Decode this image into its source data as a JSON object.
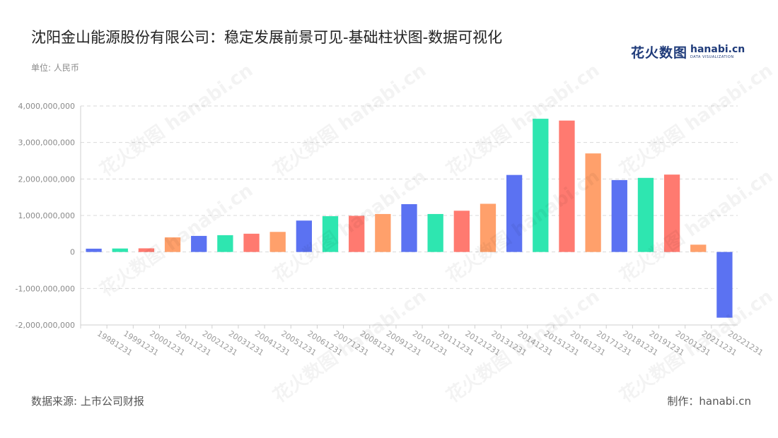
{
  "header": {
    "title": "沈阳金山能源股份有限公司：稳定发展前景可见-基础柱状图-数据可视化",
    "unit": "单位: 人民币"
  },
  "logo": {
    "cn": "花火数图",
    "en": "hanabi.cn",
    "en_sub": "DATA VISUALIZATION"
  },
  "footer": {
    "source": "数据来源: 上市公司财报",
    "maker": "制作：hanabi.cn"
  },
  "watermark_text": "花火数图 hanabi.cn",
  "chart_data": {
    "type": "bar",
    "title": "沈阳金山能源股份有限公司：稳定发展前景可见-基础柱状图-数据可视化",
    "xlabel": "",
    "ylabel": "",
    "ylim": [
      -2000000000,
      4000000000
    ],
    "yticks": [
      -2000000000,
      -1000000000,
      0,
      1000000000,
      2000000000,
      3000000000,
      4000000000
    ],
    "ytick_labels": [
      "-2,000,000,000",
      "-1,000,000,000",
      "0",
      "1,000,000,000",
      "2,000,000,000",
      "3,000,000,000",
      "4,000,000,000"
    ],
    "grid": "horizontal-dashed",
    "palette": [
      "#5b72f2",
      "#2ee6b0",
      "#ff7a70",
      "#ffa06b"
    ],
    "categories": [
      "19981231",
      "19991231",
      "20001231",
      "20011231",
      "20021231",
      "20031231",
      "20041231",
      "20051231",
      "20061231",
      "20071231",
      "20081231",
      "20091231",
      "20101231",
      "20111231",
      "20121231",
      "20131231",
      "20141231",
      "20151231",
      "20161231",
      "20171231",
      "20181231",
      "20191231",
      "20201231",
      "20211231",
      "20221231"
    ],
    "values": [
      90000000,
      95000000,
      100000000,
      400000000,
      440000000,
      460000000,
      500000000,
      550000000,
      860000000,
      980000000,
      990000000,
      1040000000,
      1310000000,
      1040000000,
      1130000000,
      1320000000,
      2110000000,
      3650000000,
      3600000000,
      2700000000,
      1970000000,
      2030000000,
      2120000000,
      200000000,
      -1800000000
    ]
  }
}
